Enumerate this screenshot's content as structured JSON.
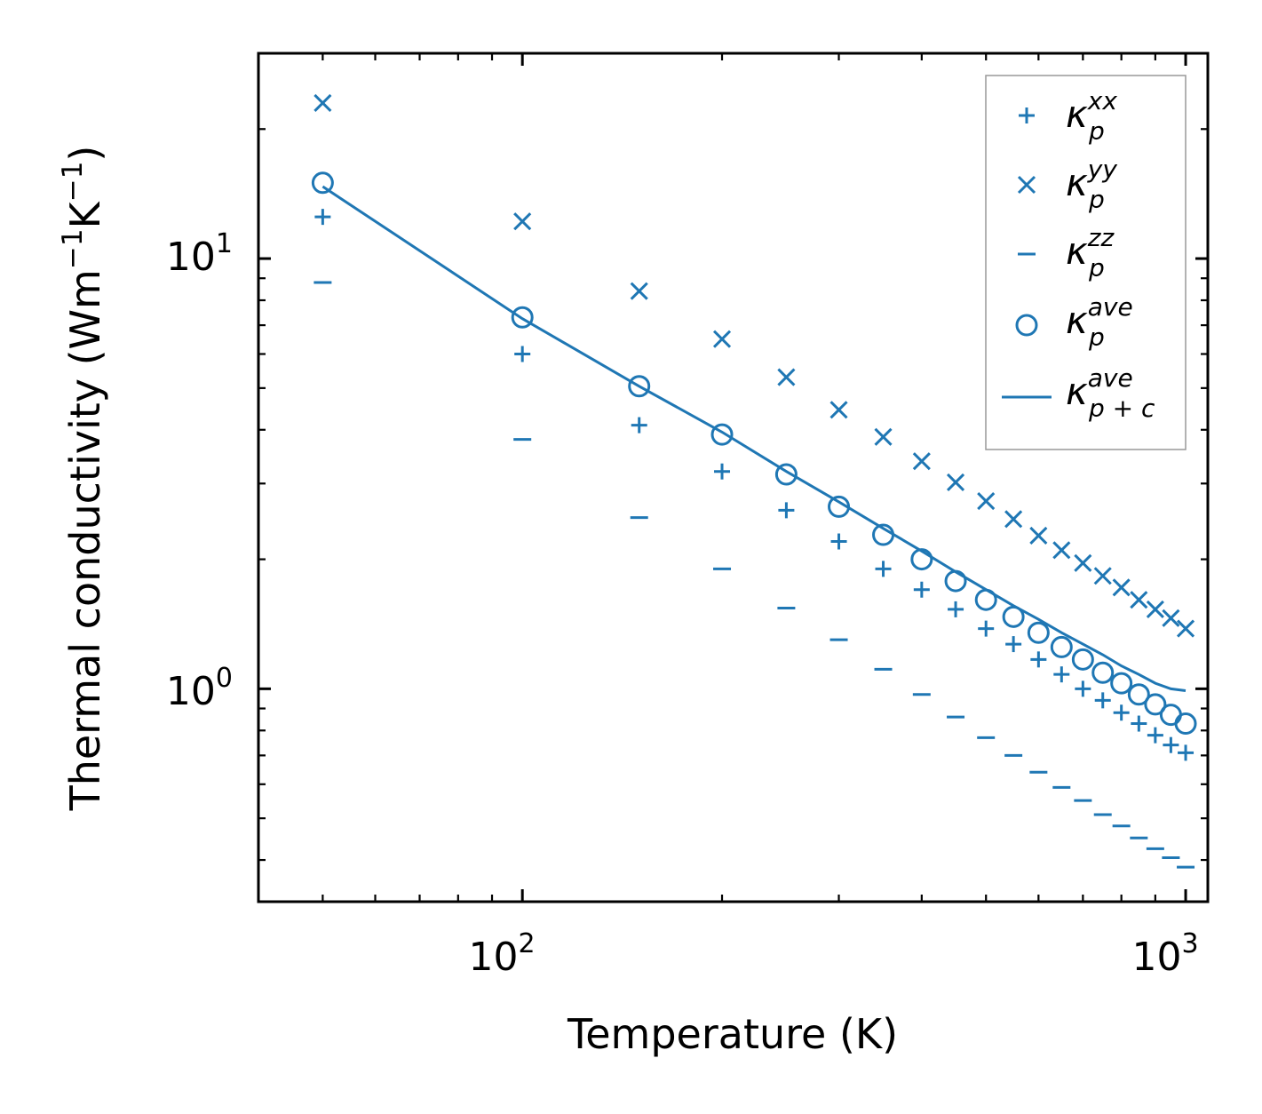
{
  "chart_data": {
    "type": "scatter",
    "xscale": "log",
    "yscale": "log",
    "xlabel": "Temperature (K)",
    "ylabel": {
      "prefix": "Thermal conductivity (Wm",
      "exp1": "−1",
      "mid": "K",
      "exp2": "−1",
      "suffix": ")"
    },
    "xlim": [
      40,
      1080
    ],
    "ylim": [
      0.32,
      30
    ],
    "xticks": [
      {
        "value": 100,
        "base": "10",
        "exp": "2"
      },
      {
        "value": 1000,
        "base": "10",
        "exp": "3"
      }
    ],
    "yticks": [
      {
        "value": 1,
        "base": "10",
        "exp": "0"
      },
      {
        "value": 10,
        "base": "10",
        "exp": "1"
      }
    ],
    "grid": false,
    "legend_position": "top-right",
    "color": "#1f77b4",
    "x": [
      50,
      100,
      150,
      200,
      250,
      300,
      350,
      400,
      450,
      500,
      550,
      600,
      650,
      700,
      750,
      800,
      850,
      900,
      950,
      1000
    ],
    "series": [
      {
        "name": "kappa_p_xx",
        "marker": "plus",
        "legend": {
          "base": "κ",
          "sup": "xx",
          "sub": "p"
        },
        "values": [
          12.5,
          6.0,
          4.1,
          3.2,
          2.6,
          2.2,
          1.9,
          1.7,
          1.53,
          1.38,
          1.27,
          1.17,
          1.08,
          1.0,
          0.94,
          0.88,
          0.83,
          0.78,
          0.74,
          0.71
        ]
      },
      {
        "name": "kappa_p_yy",
        "marker": "x",
        "legend": {
          "base": "κ",
          "sup": "yy",
          "sub": "p"
        },
        "values": [
          23.0,
          12.2,
          8.4,
          6.5,
          5.3,
          4.45,
          3.85,
          3.38,
          3.02,
          2.73,
          2.48,
          2.27,
          2.1,
          1.96,
          1.83,
          1.72,
          1.61,
          1.53,
          1.46,
          1.38
        ]
      },
      {
        "name": "kappa_p_zz",
        "marker": "hline",
        "legend": {
          "base": "κ",
          "sup": "zz",
          "sub": "p"
        },
        "values": [
          8.8,
          3.8,
          2.5,
          1.9,
          1.54,
          1.3,
          1.11,
          0.97,
          0.86,
          0.77,
          0.7,
          0.64,
          0.59,
          0.55,
          0.51,
          0.48,
          0.45,
          0.425,
          0.405,
          0.385
        ]
      },
      {
        "name": "kappa_p_ave",
        "marker": "circle",
        "legend": {
          "base": "κ",
          "sup": "ave",
          "sub": "p"
        },
        "values": [
          15.0,
          7.3,
          5.05,
          3.9,
          3.15,
          2.65,
          2.28,
          2.0,
          1.78,
          1.61,
          1.47,
          1.35,
          1.25,
          1.17,
          1.09,
          1.03,
          0.97,
          0.92,
          0.87,
          0.83
        ]
      },
      {
        "name": "kappa_pc_ave",
        "marker": "line",
        "legend": {
          "base": "κ",
          "sup": "ave",
          "sub": "p + c"
        },
        "values": [
          14.7,
          7.25,
          5.05,
          3.95,
          3.2,
          2.72,
          2.36,
          2.09,
          1.87,
          1.7,
          1.56,
          1.45,
          1.35,
          1.27,
          1.2,
          1.13,
          1.08,
          1.03,
          1.0,
          0.99
        ]
      }
    ]
  }
}
